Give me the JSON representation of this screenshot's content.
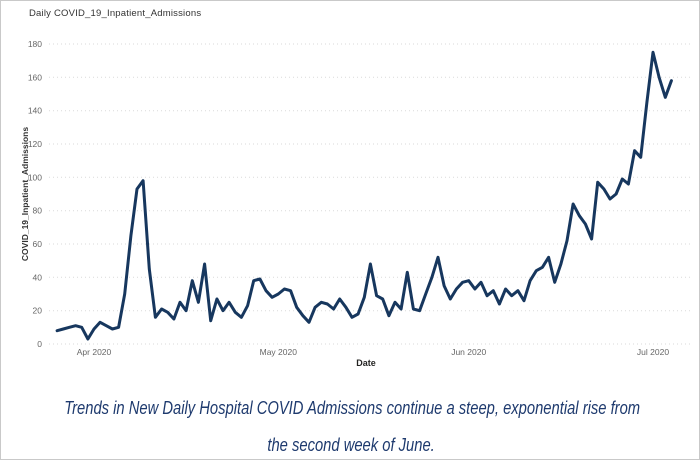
{
  "chart": {
    "title": "Daily COVID_19_Inpatient_Admissions",
    "x_axis_title": "Date",
    "y_axis_title": "COVID_19_Inpatient_Admissions"
  },
  "chart_data": {
    "type": "line",
    "title": "Daily COVID_19_Inpatient_Admissions",
    "xlabel": "Date",
    "ylabel": "COVID_19_Inpatient_Admissions",
    "x_start_date": "2020-03-26",
    "x_tick_labels": [
      "Apr 2020",
      "May 2020",
      "Jun 2020",
      "Jul 2020"
    ],
    "x_tick_day_index": [
      6,
      36,
      67,
      97
    ],
    "y_ticks": [
      0,
      20,
      40,
      60,
      80,
      100,
      120,
      140,
      160,
      180
    ],
    "ylim": [
      0,
      180
    ],
    "grid": "horizontal-dotted",
    "legend": "none",
    "values": [
      8,
      9,
      10,
      11,
      10,
      3,
      9,
      13,
      11,
      9,
      10,
      30,
      65,
      93,
      98,
      45,
      16,
      21,
      19,
      15,
      25,
      20,
      38,
      25,
      48,
      14,
      27,
      20,
      25,
      19,
      16,
      23,
      38,
      39,
      32,
      28,
      30,
      33,
      32,
      22,
      17,
      13,
      22,
      25,
      24,
      21,
      27,
      22,
      16,
      18,
      28,
      48,
      29,
      27,
      17,
      25,
      21,
      43,
      21,
      20,
      30,
      40,
      52,
      35,
      27,
      33,
      37,
      38,
      33,
      37,
      29,
      32,
      24,
      33,
      29,
      32,
      26,
      38,
      44,
      46,
      52,
      37,
      48,
      62,
      84,
      77,
      72,
      63,
      97,
      93,
      87,
      90,
      99,
      96,
      116,
      112,
      145,
      175,
      160,
      148,
      158
    ]
  },
  "caption": {
    "lines": [
      "Trends in New Daily Hospital COVID Admissions continue a steep, exponential rise from",
      "the second week of June."
    ]
  },
  "colors": {
    "line": "#17375e",
    "gridline": "#dadada",
    "tick_text": "#666666",
    "title_text": "#333333",
    "caption_text": "#1e3a6e"
  }
}
